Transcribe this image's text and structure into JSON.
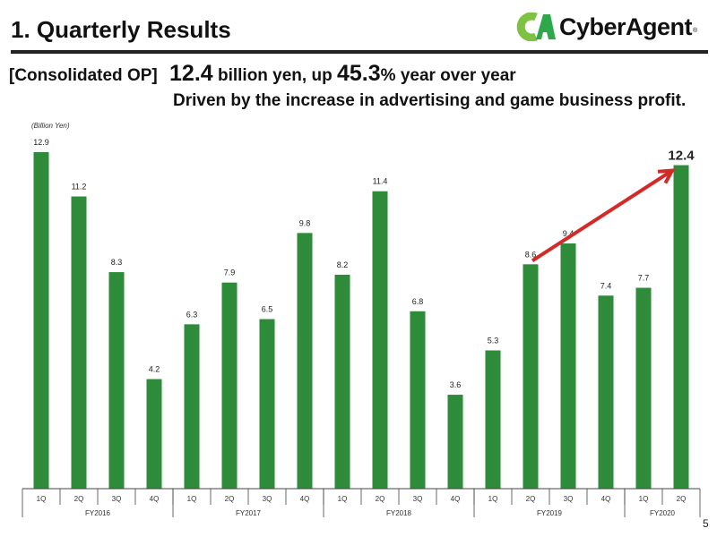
{
  "header": {
    "title": "1.  Quarterly Results",
    "logo_text": "CyberAgent",
    "logo_mark": "CA"
  },
  "headline": {
    "label": "[Consolidated OP]",
    "value": "12.4",
    "text1": " billion yen, up ",
    "growth": "45.3",
    "text2": "% year over year",
    "subline": "Driven by the increase in advertising and game business profit."
  },
  "page_number": "5",
  "colors": {
    "bar": "#2e8b3a",
    "arrow": "#d42a27",
    "logo_light": "#7dc242",
    "logo_dark": "#2ea84a"
  },
  "chart_data": {
    "type": "bar",
    "ylabel": "(Billion Yen)",
    "categories": [
      "1Q",
      "2Q",
      "3Q",
      "4Q",
      "1Q",
      "2Q",
      "3Q",
      "4Q",
      "1Q",
      "2Q",
      "3Q",
      "4Q",
      "1Q",
      "2Q",
      "3Q",
      "4Q",
      "1Q",
      "2Q"
    ],
    "groups": [
      {
        "name": "FY2016",
        "count": 4
      },
      {
        "name": "FY2017",
        "count": 4
      },
      {
        "name": "FY2018",
        "count": 4
      },
      {
        "name": "FY2019",
        "count": 4
      },
      {
        "name": "FY2020",
        "count": 2
      }
    ],
    "values": [
      12.9,
      11.2,
      8.3,
      4.2,
      6.3,
      7.9,
      6.5,
      9.8,
      8.2,
      11.4,
      6.8,
      3.6,
      5.3,
      8.6,
      9.4,
      7.4,
      7.7,
      12.4
    ],
    "value_labels": [
      "12.9",
      "11.2",
      "8.3",
      "4.2",
      "6.3",
      "7.9",
      "6.5",
      "9.8",
      "8.2",
      "11.4",
      "6.8",
      "3.6",
      "5.3",
      "8.6",
      "9.4",
      "7.4",
      "7.7",
      "12.4"
    ],
    "ylim": [
      0,
      13
    ],
    "grid": false,
    "annotation": {
      "type": "arrow",
      "from_index": 13,
      "to_index": 17
    }
  }
}
